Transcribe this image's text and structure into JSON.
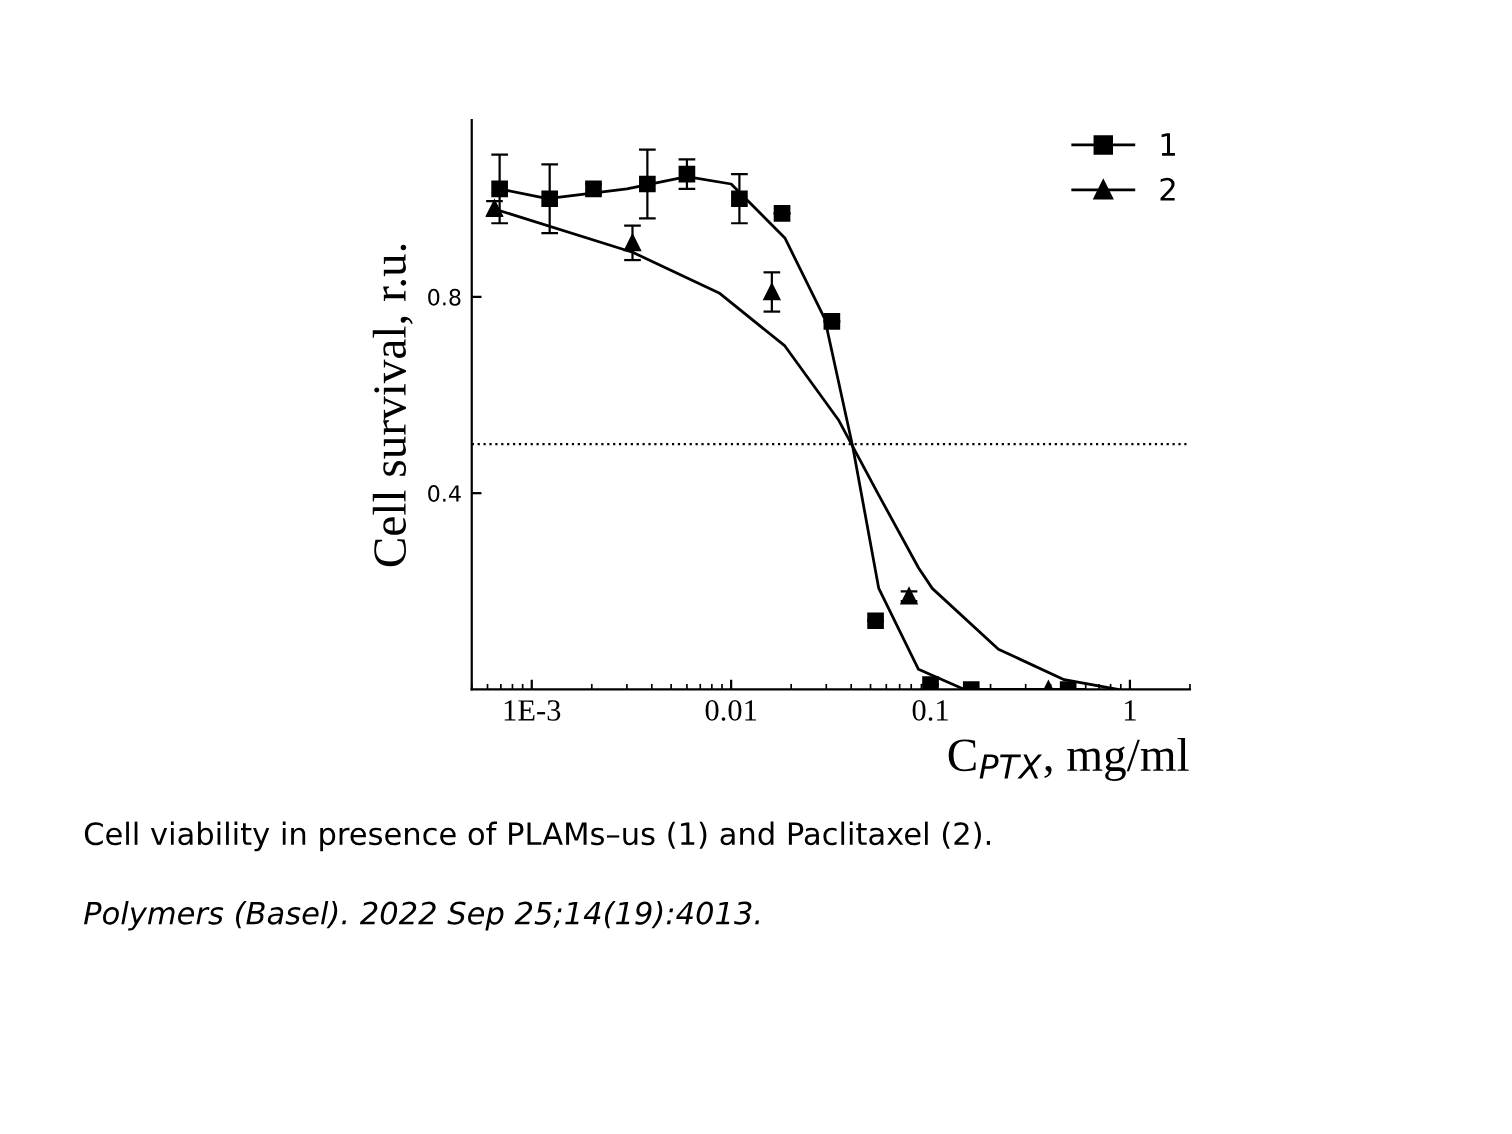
{
  "chart_data": {
    "type": "scatter",
    "xlabel": "C$_{PTX}$, mg/ml",
    "ylabel": "Cell survival, r.u.",
    "log": "x",
    "xlim": [
      0.0005,
      2
    ],
    "ylim": [
      0,
      1.16
    ],
    "xticks": [
      {
        "value": 0.001,
        "label": "1E-3"
      },
      0.01,
      0.1,
      1
    ],
    "yticks": [
      0.4,
      0.8
    ],
    "legend": "top right",
    "grid": false,
    "series": [
      {
        "name": "1",
        "marker": "square",
        "color": "#000000",
        "x": [
          0.00069,
          0.00123,
          0.00204,
          0.0038,
          0.006,
          0.011,
          0.018,
          0.032,
          0.053,
          0.1,
          0.16,
          0.49
        ],
        "values": [
          1.02,
          1.0,
          1.02,
          1.03,
          1.05,
          1.0,
          0.97,
          0.75,
          0.14,
          0.01,
          0,
          0
        ],
        "errors": [
          0.07,
          0.07,
          0.01,
          0.07,
          0.03,
          0.05,
          null,
          null,
          null,
          null,
          null,
          null
        ]
      },
      {
        "name": "2",
        "marker": "triangle",
        "color": "#000000",
        "x": [
          0.00065,
          0.0032,
          0.016,
          0.078,
          0.39
        ],
        "values": [
          0.98,
          0.91,
          0.81,
          0.19,
          0
        ],
        "errors": [
          0.015,
          0.035,
          0.04,
          0.01,
          null
        ]
      },
      {
        "type": "line",
        "color": "#000000",
        "x": [
          0.00069,
          0.0012,
          0.003,
          0.006,
          0.01,
          0.0186,
          0.0295,
          0.0407,
          0.055,
          0.087,
          0.148,
          0.59
        ],
        "values": [
          1.02,
          1.0,
          1.02,
          1.045,
          1.03,
          0.92,
          0.755,
          0.495,
          0.206,
          0.041,
          0,
          0
        ]
      },
      {
        "type": "line",
        "color": "#000000",
        "x": [
          0.00065,
          0.0032,
          0.0087,
          0.0186,
          0.0347,
          0.055,
          0.087,
          0.102,
          0.219,
          0.468,
          0.87
        ],
        "values": [
          0.979,
          0.891,
          0.808,
          0.7,
          0.548,
          0.396,
          0.248,
          0.206,
          0.082,
          0.02,
          0
        ]
      }
    ],
    "ref_lines": [
      {
        "axis": "y",
        "value": 0.5,
        "line_style": "dotted",
        "color": "#000000"
      }
    ],
    "annotations": [
      "Cell viability in presence of PLAMs–us (1) and Paclitaxel (2).",
      "Polymers (Basel). 2022 Sep 25;14(19):4013."
    ]
  }
}
